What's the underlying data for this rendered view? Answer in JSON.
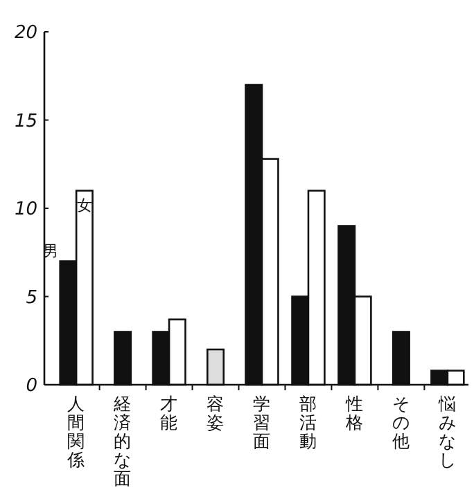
{
  "chart_data": {
    "type": "bar",
    "categories": [
      "人間関係",
      "経済的な面",
      "才能",
      "容姿",
      "学習面",
      "部活動",
      "性格",
      "その他",
      "悩みなし"
    ],
    "series": [
      {
        "name": "男",
        "color": "#111111",
        "values": [
          7,
          3,
          3,
          null,
          17,
          5,
          9,
          3,
          0.8
        ]
      },
      {
        "name": "女",
        "color": "#ffffff",
        "colors": [
          "#ffffff",
          null,
          "#ffffff",
          "#dddddd",
          "#ffffff",
          "#ffffff",
          "#ffffff",
          null,
          "#ffffff"
        ],
        "values": [
          11,
          null,
          3.7,
          2,
          12.8,
          11,
          5,
          null,
          0.8
        ]
      }
    ],
    "ylim": [
      0,
      20
    ],
    "yticks": [
      0,
      5,
      10,
      15,
      20
    ],
    "grid": false
  }
}
